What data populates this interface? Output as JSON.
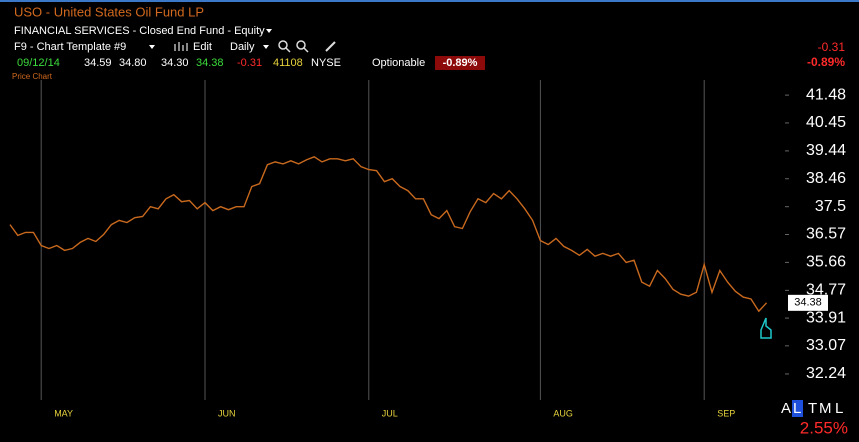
{
  "header": {
    "symbol_title": "USO - United States Oil Fund LP",
    "classification": "FINANCIAL SERVICES - Closed End Fund - Equity",
    "template": "F9 - Chart Template #9",
    "edit": "Edit",
    "period": "Daily",
    "change": "-0.31",
    "change_pct": "-0.89%"
  },
  "quote": {
    "date": "09/12/14",
    "open": "34.59",
    "high": "34.80",
    "low": "34.30",
    "last": "34.38",
    "change": "-0.31",
    "volume": "41108",
    "exchange": "NYSE",
    "optionable": "Optionable",
    "change_pct": "-0.89%"
  },
  "chart_data": {
    "type": "line",
    "title": "Price Chart",
    "categories": [
      null,
      null,
      null,
      null,
      "MAY",
      null,
      null,
      null,
      null,
      null,
      null,
      null,
      null,
      null,
      null,
      null,
      null,
      null,
      null,
      null,
      null,
      null,
      null,
      null,
      null,
      "JUN",
      null,
      null,
      null,
      null,
      null,
      null,
      null,
      null,
      null,
      null,
      null,
      null,
      null,
      null,
      null,
      null,
      null,
      null,
      null,
      null,
      "JUL",
      null,
      null,
      null,
      null,
      null,
      null,
      null,
      null,
      null,
      null,
      null,
      null,
      null,
      null,
      null,
      null,
      null,
      null,
      null,
      null,
      null,
      "AUG",
      null,
      null,
      null,
      null,
      null,
      null,
      null,
      null,
      null,
      null,
      null,
      null,
      null,
      null,
      null,
      null,
      null,
      null,
      null,
      null,
      "SEP",
      null,
      null,
      null,
      null,
      null,
      null,
      null,
      null
    ],
    "values": [
      36.9,
      36.54,
      36.64,
      36.64,
      36.21,
      36.11,
      36.21,
      36.05,
      36.11,
      36.31,
      36.44,
      36.34,
      36.57,
      36.9,
      37.04,
      36.97,
      37.13,
      37.17,
      37.5,
      37.43,
      37.77,
      37.91,
      37.67,
      37.71,
      37.43,
      37.64,
      37.37,
      37.5,
      37.4,
      37.5,
      37.5,
      38.19,
      38.29,
      38.95,
      39.05,
      38.98,
      39.09,
      38.98,
      39.12,
      39.23,
      39.05,
      39.16,
      39.16,
      39.09,
      39.16,
      38.88,
      38.78,
      38.74,
      38.36,
      38.46,
      38.19,
      38.05,
      37.77,
      37.77,
      37.23,
      37.1,
      37.37,
      36.83,
      36.77,
      37.33,
      37.77,
      37.64,
      37.95,
      37.77,
      38.05,
      37.77,
      37.43,
      37.04,
      36.37,
      36.24,
      36.44,
      36.18,
      36.05,
      35.89,
      36.08,
      35.86,
      35.95,
      35.86,
      35.95,
      35.66,
      35.73,
      35.03,
      34.9,
      35.4,
      35.14,
      34.8,
      34.65,
      34.59,
      34.71,
      35.59,
      34.71,
      35.4,
      35.03,
      34.74,
      34.56,
      34.5,
      34.12,
      34.38
    ],
    "color": "#c8691e",
    "log_scale": true,
    "ylim": [
      31.49,
      42.05
    ],
    "yticks": [
      41.48,
      40.45,
      39.44,
      38.46,
      37.5,
      36.57,
      35.66,
      34.77,
      33.91,
      33.07,
      32.24
    ],
    "grid": "x"
  },
  "scale_controls": {
    "buttons": [
      "A",
      "L",
      "T",
      "M",
      "L"
    ],
    "step_pct": "2.55%"
  }
}
